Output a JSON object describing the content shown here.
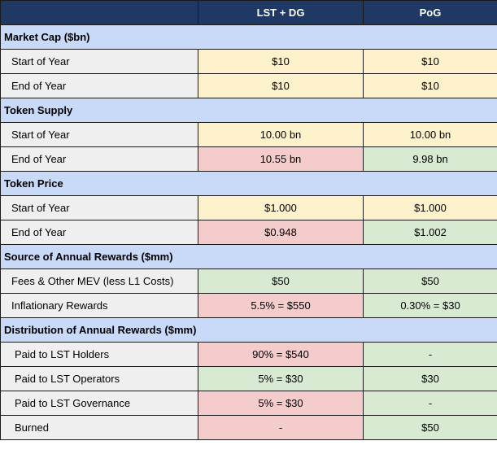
{
  "header": {
    "col1": "",
    "col2": "LST + DG",
    "col3": "PoG"
  },
  "sections": [
    {
      "title": "Market Cap ($bn)",
      "rows": [
        {
          "label": "Start of Year",
          "lst": "$10",
          "pog": "$10"
        },
        {
          "label": "End of Year",
          "lst": "$10",
          "pog": "$10"
        }
      ]
    },
    {
      "title": "Token Supply",
      "rows": [
        {
          "label": "Start of Year",
          "lst": "10.00 bn",
          "pog": "10.00 bn"
        },
        {
          "label": "End of Year",
          "lst": "10.55 bn",
          "pog": "9.98 bn"
        }
      ]
    },
    {
      "title": "Token Price",
      "rows": [
        {
          "label": "Start of Year",
          "lst": "$1.000",
          "pog": "$1.000"
        },
        {
          "label": "End of Year",
          "lst": "$0.948",
          "pog": "$1.002"
        }
      ]
    },
    {
      "title": "Source of Annual Rewards ($mm)",
      "rows": [
        {
          "label": "Fees & Other MEV (less L1 Costs)",
          "lst": "$50",
          "pog": "$50"
        },
        {
          "label": "Inflationary Rewards",
          "lst": "5.5% = $550",
          "pog": "0.30% = $30"
        }
      ]
    },
    {
      "title": "Distribution of Annual Rewards ($mm)",
      "rows": [
        {
          "label": "Paid to LST Holders",
          "lst": "90% = $540",
          "pog": "-"
        },
        {
          "label": "Paid to LST Operators",
          "lst": "5% = $30",
          "pog": "$30"
        },
        {
          "label": "Paid to LST Governance",
          "lst": "5% = $30",
          "pog": "-"
        },
        {
          "label": "Burned",
          "lst": "-",
          "pog": "$50"
        }
      ]
    }
  ],
  "colors": {
    "header_bg": "#1f3864",
    "section_bg": "#c9d9f8",
    "label_bg": "#efefef",
    "neutral": "#fef2cc",
    "unfavorable": "#f4cccc",
    "favorable": "#d9ead3"
  }
}
